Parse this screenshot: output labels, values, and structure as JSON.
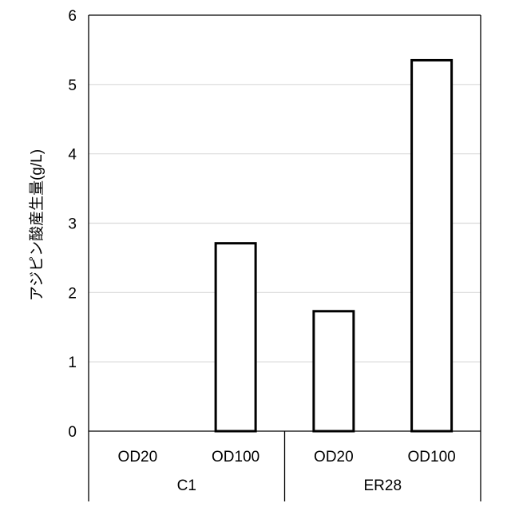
{
  "chart_data": {
    "type": "bar",
    "title": "",
    "xlabel": "",
    "ylabel": "アジピン酸産生量(g/L)",
    "ylim": [
      0,
      6
    ],
    "yticks": [
      "0",
      "1",
      "2",
      "3",
      "4",
      "5",
      "6"
    ],
    "grid": true,
    "legend": "none",
    "groups": [
      {
        "label": "C1",
        "categories": [
          "OD20",
          "OD100"
        ],
        "values": [
          0,
          2.71
        ]
      },
      {
        "label": "ER28",
        "categories": [
          "OD20",
          "OD100"
        ],
        "values": [
          1.73,
          5.35
        ]
      }
    ],
    "bar_fill": "#ffffff",
    "bar_stroke": "#000000",
    "grid_color": "#d9d9d9"
  }
}
